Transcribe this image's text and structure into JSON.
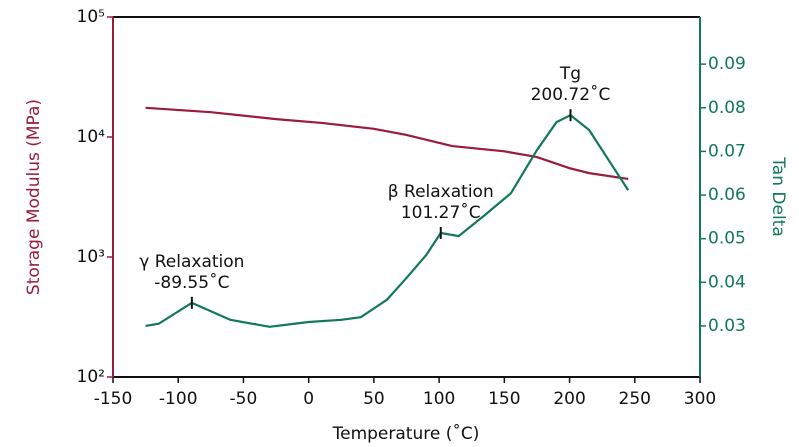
{
  "chart_data": {
    "type": "line",
    "xlabel": "Temperature (˚C)",
    "ylabel": "Storage Modulus (MPa)",
    "y2label": "Tan Delta",
    "xlim": [
      -150,
      300
    ],
    "xticks": [
      -150,
      -100,
      -50,
      0,
      50,
      100,
      150,
      200,
      250,
      300
    ],
    "ylim": [
      100,
      100000
    ],
    "ylog": true,
    "yticks": [
      {
        "value": 100,
        "label": "10²"
      },
      {
        "value": 1000,
        "label": "10³"
      },
      {
        "value": 10000,
        "label": "10⁴"
      },
      {
        "value": 100000,
        "label": "10⁵"
      }
    ],
    "y2lim": [
      0.0183,
      0.1008
    ],
    "y2ticks": [
      0.03,
      0.04,
      0.05,
      0.06,
      0.07,
      0.08,
      0.09
    ],
    "ycolor": "#9b1b3c",
    "y2color": "#12785a",
    "series": [
      {
        "color": "#9b1b3c",
        "x": [
          -125,
          -75,
          -25,
          10,
          50,
          75,
          110,
          150,
          175,
          200,
          215,
          245
        ],
        "values": [
          17500,
          16100,
          14100,
          13100,
          11700,
          10400,
          8400,
          7600,
          6800,
          5500,
          5000,
          4470
        ]
      },
      {
        "color": "#12785a",
        "axis": "y2",
        "x": [
          -125,
          -115,
          -89.55,
          -60,
          -30,
          0,
          25,
          40,
          60,
          75,
          90,
          101.27,
          115,
          135,
          155,
          175,
          190,
          200.72,
          215,
          235,
          245
        ],
        "values": [
          0.03,
          0.0305,
          0.0353,
          0.0314,
          0.0298,
          0.0309,
          0.0314,
          0.032,
          0.036,
          0.041,
          0.0462,
          0.0513,
          0.0506,
          0.0554,
          0.0604,
          0.0703,
          0.0767,
          0.0783,
          0.0749,
          0.0657,
          0.0611
        ]
      }
    ],
    "annotations": [
      {
        "text": [
          "γ Relaxation",
          "-89.55˚C"
        ],
        "x": -89.55,
        "y": 0.0353
      },
      {
        "text": [
          "β Relaxation",
          "101.27˚C"
        ],
        "x": 101.27,
        "y": 0.0513
      },
      {
        "text": [
          "Tg",
          "200.72˚C"
        ],
        "x": 200.72,
        "y": 0.0783
      }
    ]
  }
}
